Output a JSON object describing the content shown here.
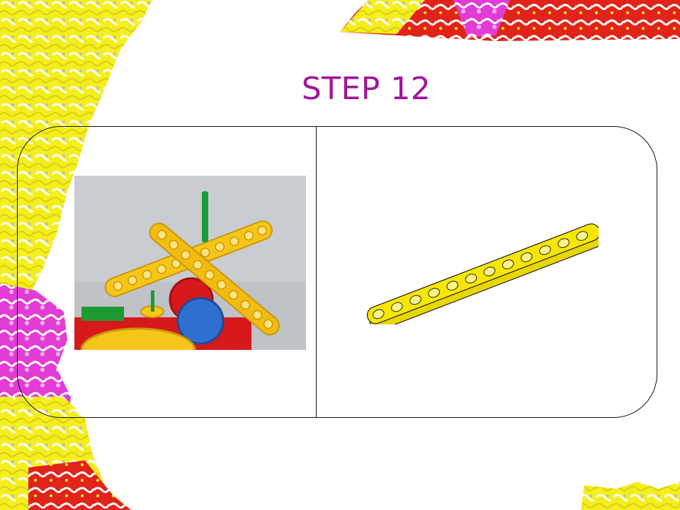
{
  "slide": {
    "title": "STEP 12"
  },
  "colors": {
    "title": "#a0179a",
    "beam_yellow": "#f7e600",
    "photo_beam_yellow": "#f5c518",
    "axle_green": "#1a9a3a",
    "gear_red": "#d7191c",
    "gear_blue": "#2f6fd0",
    "decor_yellow": "#f4ee1e",
    "decor_magenta": "#e23bd6",
    "decor_red": "#e2231a"
  },
  "icons": {
    "step_photo": "lego-assembly-photo-icon",
    "part": "yellow-lego-beam-icon"
  }
}
